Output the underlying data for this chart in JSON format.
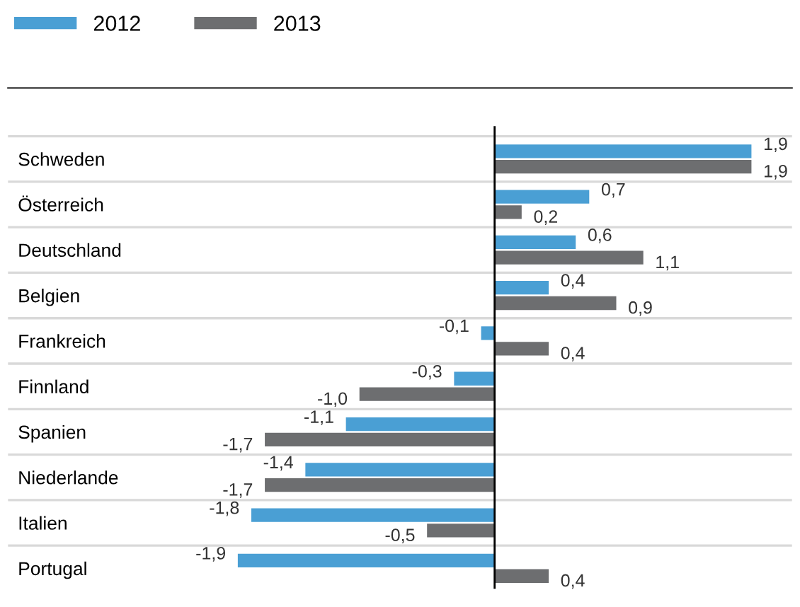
{
  "chart_data": {
    "type": "bar",
    "orientation": "horizontal",
    "categories": [
      "Schweden",
      "Österreich",
      "Deutschland",
      "Belgien",
      "Frankreich",
      "Finnland",
      "Spanien",
      "Niederlande",
      "Italien",
      "Portugal"
    ],
    "series": [
      {
        "name": "2012",
        "color": "#4a9fd4",
        "values": [
          1.9,
          0.7,
          0.6,
          0.4,
          -0.1,
          -0.3,
          -1.1,
          -1.4,
          -1.8,
          -1.9
        ],
        "value_labels": [
          "1,9",
          "0,7",
          "0,6",
          "0,4",
          "-0,1",
          "-0,3",
          "-1,1",
          "-1,4",
          "-1,8",
          "-1,9"
        ]
      },
      {
        "name": "2013",
        "color": "#6d6e70",
        "values": [
          1.9,
          0.2,
          1.1,
          0.9,
          0.4,
          -1.0,
          -1.7,
          -1.7,
          -0.5,
          0.4
        ],
        "value_labels": [
          "1,9",
          "0,2",
          "1,1",
          "0,9",
          "0,4",
          "-1,0",
          "-1,7",
          "-1,7",
          "-0,5",
          "0,4"
        ]
      }
    ],
    "xlim": [
      -3.6,
      2.2
    ],
    "tick_labels": "y",
    "grid": "y",
    "legend": "top left",
    "ref_lines": [
      {
        "axis": "x",
        "value": 0,
        "color": "#000000"
      }
    ]
  }
}
